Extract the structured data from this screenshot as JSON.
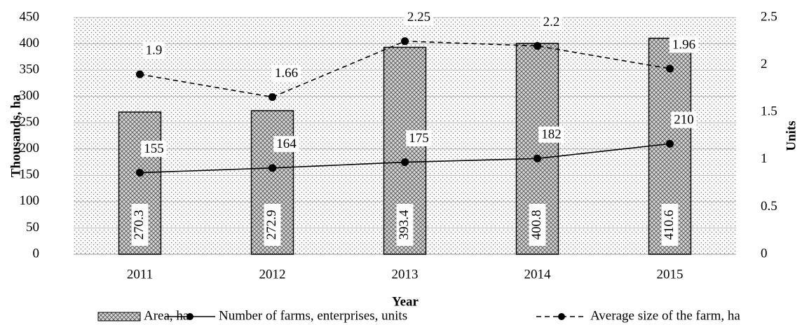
{
  "chart_data": {
    "type": "combo",
    "x_label": "Year",
    "y_label": "Thousands, ha",
    "y2_label": "Units",
    "categories": [
      "2011",
      "2012",
      "2013",
      "2014",
      "2015"
    ],
    "ylim": [
      0,
      450
    ],
    "yticks": [
      0,
      50,
      100,
      150,
      200,
      250,
      300,
      350,
      400,
      450
    ],
    "y2lim": [
      0,
      2.5
    ],
    "y2ticks": [
      0,
      0.5,
      1,
      1.5,
      2,
      2.5
    ],
    "series": [
      {
        "name": "Area, ha",
        "type": "bar",
        "color": "#555555",
        "values": [
          270.3,
          272.9,
          393.4,
          400.8,
          410.6
        ]
      },
      {
        "name": "Number of farms, enterprises, units",
        "type": "line",
        "line_style": "solid",
        "color": "#000000",
        "values": [
          155,
          164,
          175,
          182,
          210
        ]
      },
      {
        "name": "Average size of the farm, ha",
        "type": "line",
        "line_style": "dashed",
        "axis": "y2",
        "color": "#000000",
        "values": [
          1.9,
          1.66,
          2.25,
          2.2,
          1.96
        ]
      }
    ]
  }
}
